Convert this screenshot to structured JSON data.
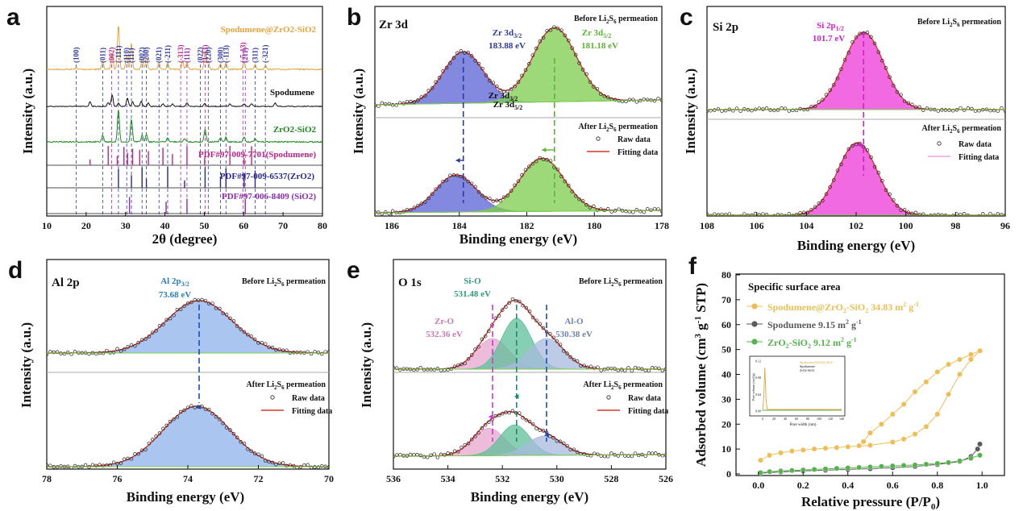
{
  "figure": {
    "panel_labels": [
      "a",
      "b",
      "c",
      "d",
      "e",
      "f"
    ]
  },
  "chart_data": [
    {
      "panel": "a",
      "type": "line",
      "xlabel": "2θ (degree)",
      "ylabel": "Intensity (a.u.)",
      "xlim": [
        10,
        80
      ],
      "xticks": [
        "10",
        "20",
        "30",
        "40",
        "50",
        "60",
        "70",
        "80"
      ],
      "series": [
        {
          "name": "Spodumene@ZrO2-SiO2",
          "color": "#E8A33C"
        },
        {
          "name": "Spodumene",
          "color": "#111111"
        },
        {
          "name": "ZrO2-SiO2",
          "color": "#1E8B1E"
        }
      ],
      "references": [
        {
          "name": "PDF#97-009-7701(Spodumene)",
          "color": "#C0228C",
          "peaks": [
            21.0,
            25.6,
            27.9,
            29.6,
            30.5,
            31.8,
            33.6,
            35.8,
            39.5,
            41.9,
            45.6,
            50.1,
            56.5,
            60.1,
            62.0
          ]
        },
        {
          "name": "PDF#97-009-6537(ZrO2)",
          "color": "#26288F",
          "peaks": [
            28.2,
            31.5,
            34.2,
            35.3,
            40.7,
            45.0,
            50.2,
            54.1,
            55.5,
            60.1,
            62.9
          ]
        },
        {
          "name": "PDF#97-006-8409 (SiO2)",
          "color": "#8B2BB5",
          "peaks": [
            31.0,
            40.3,
            45.6,
            60.4
          ]
        }
      ],
      "peak_labels": [
        {
          "x": 17.5,
          "text": "(100)",
          "color": "#2F3A9E"
        },
        {
          "x": 24.2,
          "text": "(011)",
          "color": "#2F3A9E"
        },
        {
          "x": 26.5,
          "text": "(002)",
          "color": "#C0228C"
        },
        {
          "x": 28.2,
          "text": "(-111)",
          "color": "#2F3A9E"
        },
        {
          "x": 30.3,
          "text": "(110)",
          "color": "#2F3A9E"
        },
        {
          "x": 31.5,
          "text": "(111)",
          "color": "#2F3A9E"
        },
        {
          "x": 34.2,
          "text": "(002)",
          "color": "#2F3A9E"
        },
        {
          "x": 35.3,
          "text": "(200)",
          "color": "#2F3A9E"
        },
        {
          "x": 38.5,
          "text": "(021)",
          "color": "#2F3A9E"
        },
        {
          "x": 40.7,
          "text": "(-211)",
          "color": "#2F3A9E"
        },
        {
          "x": 44.0,
          "text": "(-313)",
          "color": "#C0228C"
        },
        {
          "x": 45.6,
          "text": "(111)",
          "color": "#8B2BB5"
        },
        {
          "x": 49.0,
          "text": "(022)",
          "color": "#2F3A9E"
        },
        {
          "x": 50.2,
          "text": "(1-13)",
          "color": "#C0228C"
        },
        {
          "x": 51.0,
          "text": "(220)",
          "color": "#2F3A9E"
        },
        {
          "x": 54.1,
          "text": "(300)",
          "color": "#2F3A9E"
        },
        {
          "x": 55.5,
          "text": "(-113)",
          "color": "#2F3A9E"
        },
        {
          "x": 59.8,
          "text": "(-5-13)",
          "color": "#C0228C"
        },
        {
          "x": 60.4,
          "text": "(211)",
          "color": "#8B2BB5"
        },
        {
          "x": 62.9,
          "text": "(311)",
          "color": "#2F3A9E"
        },
        {
          "x": 65.5,
          "text": "(-321)",
          "color": "#2F3A9E"
        }
      ],
      "labels": {
        "s1": "Spodumene@ZrO2-SiO2",
        "s2": "Spodumene",
        "s3": "ZrO2-SiO2",
        "r1": "PDF#97-009-7701(Spodumene)",
        "r2": "PDF#97-009-6537(ZrO2)",
        "r3": "PDF#97-006-8409 (SiO2)"
      }
    },
    {
      "panel": "b",
      "type": "line",
      "title": "Zr 3d",
      "xlabel": "Binding energy (eV)",
      "ylabel": "Intensity (a.u.)",
      "xlim": [
        186.5,
        178
      ],
      "xticks": [
        "186",
        "184",
        "182",
        "180",
        "178"
      ],
      "before_label": "Before Li2S6 permeation",
      "after_label": "After Li2S6 permeation",
      "peaks_before": [
        {
          "name": "Zr 3d3/2",
          "center": 183.88,
          "label": "183.88 eV",
          "color": "#5B62D6"
        },
        {
          "name": "Zr 3d5/2",
          "center": 181.18,
          "label": "181.18 eV",
          "color": "#7CCB4C"
        }
      ],
      "peaks_after": [
        {
          "center": 184.1,
          "color": "#5B62D6"
        },
        {
          "center": 181.55,
          "color": "#7CCB4C"
        }
      ],
      "legend": [
        "Raw data",
        "Fitting data"
      ]
    },
    {
      "panel": "c",
      "type": "line",
      "title": "Si 2p",
      "xlabel": "Binding energy (eV)",
      "ylabel": "Intensity (a.u.)",
      "xlim": [
        108,
        96
      ],
      "xticks": [
        "108",
        "106",
        "104",
        "102",
        "100",
        "98",
        "96"
      ],
      "before_label": "Before Li2S6 permeation",
      "after_label": "After Li2S6 permeation",
      "peaks_before": [
        {
          "name": "Si 2p1/2",
          "center": 101.7,
          "label": "101.7 eV",
          "color": "#EE38D8"
        }
      ],
      "peaks_after": [
        {
          "center": 101.95,
          "color": "#EE38D8"
        }
      ],
      "legend": [
        "Raw data",
        "Fitting data"
      ]
    },
    {
      "panel": "d",
      "type": "line",
      "title": "Al 2p",
      "xlabel": "Binding energy (eV)",
      "ylabel": "Intensity (a.u.)",
      "xlim": [
        78,
        70
      ],
      "xticks": [
        "78",
        "76",
        "74",
        "72",
        "70"
      ],
      "before_label": "Before Li2S6 permeation",
      "after_label": "After Li2S6 permeation",
      "peaks_before": [
        {
          "name": "Al 2p3/2",
          "center": 73.68,
          "label": "73.68 eV",
          "color": "#8FB1EC"
        }
      ],
      "peaks_after": [
        {
          "center": 73.75,
          "color": "#8FB1EC"
        }
      ],
      "legend": [
        "Raw data",
        "Fitting data"
      ]
    },
    {
      "panel": "e",
      "type": "line",
      "title": "O 1s",
      "xlabel": "Binding energy (eV)",
      "ylabel": "Intensity (a.u.)",
      "xlim": [
        536,
        526
      ],
      "xticks": [
        "536",
        "534",
        "532",
        "530",
        "528",
        "526"
      ],
      "before_label": "Before Li2S6 permeation",
      "after_label": "After Li2S6 permeation",
      "peaks_before": [
        {
          "name": "Zr-O",
          "center": 532.36,
          "label": "532.36 eV",
          "color": "#E7A6CF"
        },
        {
          "name": "Si-O",
          "center": 531.48,
          "label": "531.48 eV",
          "color": "#5FBF9A"
        },
        {
          "name": "Al-O",
          "center": 530.38,
          "label": "530.38 eV",
          "color": "#A7B9DE"
        }
      ],
      "peaks_after": [
        {
          "center": 532.5,
          "color": "#E7A6CF"
        },
        {
          "center": 531.55,
          "color": "#5FBF9A"
        },
        {
          "center": 530.45,
          "color": "#A7B9DE"
        }
      ],
      "legend": [
        "Raw data",
        "Fitting data"
      ]
    },
    {
      "panel": "f",
      "type": "scatter",
      "title": "Specific surface area",
      "xlabel": "Relative pressure (P/P0)",
      "ylabel": "Adsorbed volume (cm3 g-1 STP)",
      "xlim": [
        -0.1,
        1.1
      ],
      "ylim": [
        0,
        80
      ],
      "xticks": [
        "0.0",
        "0.2",
        "0.4",
        "0.6",
        "0.8",
        "1.0"
      ],
      "yticks": [
        "0",
        "10",
        "20",
        "30",
        "40",
        "50",
        "60",
        "70",
        "80"
      ],
      "series": [
        {
          "name": "Spodumene@ZrO2-SiO2 34.83 m2 g-1",
          "color": "#EDBE56",
          "adsorption": [
            [
              0.01,
              5.5
            ],
            [
              0.05,
              7.5
            ],
            [
              0.1,
              8.5
            ],
            [
              0.15,
              9.2
            ],
            [
              0.2,
              9.6
            ],
            [
              0.25,
              10
            ],
            [
              0.3,
              10.3
            ],
            [
              0.35,
              10.6
            ],
            [
              0.4,
              10.9
            ],
            [
              0.5,
              11.5
            ],
            [
              0.6,
              12.8
            ],
            [
              0.65,
              14
            ],
            [
              0.7,
              16
            ],
            [
              0.75,
              19
            ],
            [
              0.8,
              24
            ],
            [
              0.85,
              32
            ],
            [
              0.9,
              40
            ],
            [
              0.95,
              46
            ],
            [
              0.99,
              49.5
            ]
          ],
          "desorption": [
            [
              0.99,
              49.5
            ],
            [
              0.95,
              48
            ],
            [
              0.9,
              46
            ],
            [
              0.85,
              44
            ],
            [
              0.8,
              41
            ],
            [
              0.75,
              37
            ],
            [
              0.7,
              33
            ],
            [
              0.65,
              28
            ],
            [
              0.6,
              24
            ],
            [
              0.55,
              20
            ],
            [
              0.5,
              16.5
            ],
            [
              0.47,
              13
            ],
            [
              0.45,
              11.3
            ]
          ]
        },
        {
          "name": "Spodumene 9.15 m2 g-1",
          "color": "#5A5A5A",
          "adsorption": [
            [
              0.01,
              0.3
            ],
            [
              0.1,
              0.8
            ],
            [
              0.2,
              1.2
            ],
            [
              0.3,
              1.5
            ],
            [
              0.4,
              1.8
            ],
            [
              0.5,
              2.1
            ],
            [
              0.6,
              2.5
            ],
            [
              0.7,
              3
            ],
            [
              0.8,
              3.8
            ],
            [
              0.9,
              5
            ],
            [
              0.95,
              7
            ],
            [
              0.98,
              10
            ],
            [
              0.99,
              12
            ]
          ]
        },
        {
          "name": "ZrO2-SiO2 9.12 m2 g-1",
          "color": "#56B34C",
          "adsorption": [
            [
              0.01,
              0.5
            ],
            [
              0.05,
              0.9
            ],
            [
              0.1,
              1.2
            ],
            [
              0.15,
              1.4
            ],
            [
              0.2,
              1.6
            ],
            [
              0.25,
              1.8
            ],
            [
              0.3,
              2
            ],
            [
              0.35,
              2.2
            ],
            [
              0.4,
              2.4
            ],
            [
              0.45,
              2.6
            ],
            [
              0.5,
              2.8
            ],
            [
              0.55,
              3
            ],
            [
              0.6,
              3.2
            ],
            [
              0.65,
              3.4
            ],
            [
              0.7,
              3.6
            ],
            [
              0.75,
              3.9
            ],
            [
              0.8,
              4.2
            ],
            [
              0.85,
              4.6
            ],
            [
              0.9,
              5.2
            ],
            [
              0.95,
              6.3
            ],
            [
              0.99,
              7.5
            ]
          ]
        }
      ],
      "inset": {
        "title": "Spodumene@ZrO2-SiO2",
        "legend": [
          "Spodumene",
          "ZrO2-SiO2"
        ],
        "xlabel": "Pore width (nm)",
        "ylabel": "Pore volume (cm3/g)",
        "xticks": [
          "0",
          "20",
          "40",
          "60",
          "80",
          "100",
          "120",
          "140"
        ],
        "yticks": [
          "0.00",
          "0.04",
          "0.08",
          "0.12"
        ]
      }
    }
  ]
}
